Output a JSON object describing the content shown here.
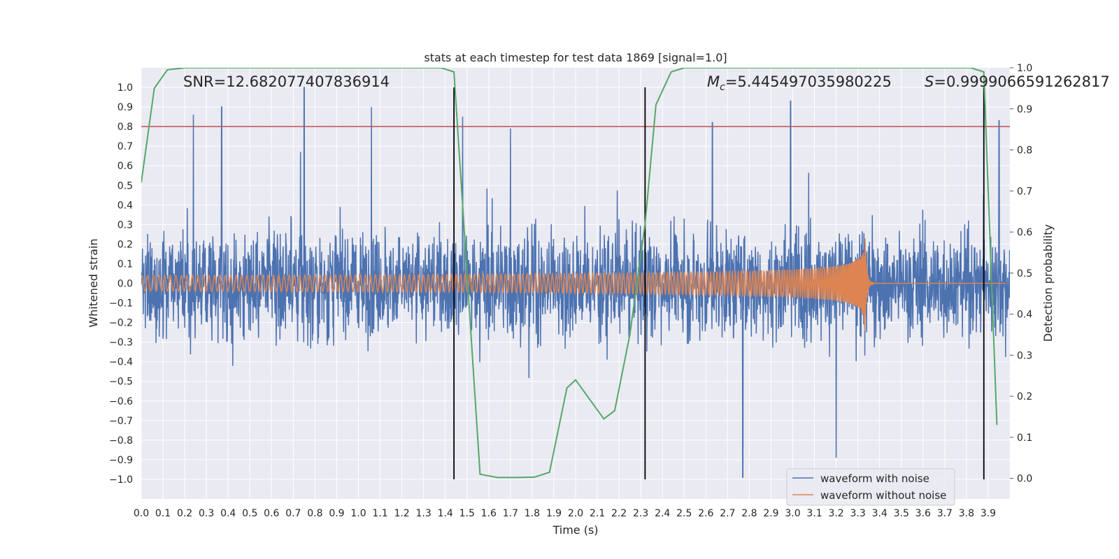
{
  "chart_data": {
    "type": "line",
    "title": "stats at each timestep for test data 1869 [signal=1.0]",
    "xlabel": "Time (s)",
    "ylabel_left": "Whitened strain",
    "ylabel_right": "Detection probability",
    "xlim": [
      0.0,
      4.0
    ],
    "ylim_left": [
      -1.1,
      1.1
    ],
    "ylim_right": [
      -0.05,
      1.0
    ],
    "x_ticks": [
      "0.0",
      "0.1",
      "0.2",
      "0.3",
      "0.4",
      "0.5",
      "0.6",
      "0.7",
      "0.8",
      "0.9",
      "1.0",
      "1.1",
      "1.2",
      "1.3",
      "1.4",
      "1.5",
      "1.6",
      "1.7",
      "1.8",
      "1.9",
      "2.0",
      "2.1",
      "2.2",
      "2.3",
      "2.4",
      "2.5",
      "2.6",
      "2.7",
      "2.8",
      "2.9",
      "3.0",
      "3.1",
      "3.2",
      "3.3",
      "3.4",
      "3.5",
      "3.6",
      "3.7",
      "3.8",
      "3.9"
    ],
    "y_ticks_left": [
      "1.0",
      "0.9",
      "0.8",
      "0.7",
      "0.6",
      "0.5",
      "0.4",
      "0.3",
      "0.2",
      "0.1",
      "0.0",
      "−0.1",
      "−0.2",
      "−0.3",
      "−0.4",
      "−0.5",
      "−0.6",
      "−0.7",
      "−0.8",
      "−0.9",
      "−1.0"
    ],
    "y_ticks_right": [
      "1.0",
      "0.9",
      "0.8",
      "0.7",
      "0.6",
      "0.5",
      "0.4",
      "0.3",
      "0.2",
      "0.1",
      "0.0"
    ],
    "annotations": {
      "snr": "SNR=12.682077407836914",
      "mc_symbol": "M",
      "mc_sub": "c",
      "mc_value": "=5.445497035980225",
      "s_symbol": "S",
      "s_value": "=0.9999066591262817"
    },
    "legend": {
      "placement": "lower-right",
      "entries": [
        "waveform with noise",
        "waveform without noise"
      ]
    },
    "threshold_line": {
      "y": 0.8,
      "color": "#c44e52"
    },
    "vertical_lines_x": [
      1.44,
      2.32,
      3.88
    ],
    "colors": {
      "noise": "#4c72b0",
      "clean": "#dd8452",
      "prob": "#55a868",
      "background": "#eaeaf2",
      "grid": "#ffffff",
      "vline": "#000000"
    },
    "series": [
      {
        "name": "waveform with noise",
        "description": "noisy whitened strain, roughly within ±0.9 with occasional spikes reaching 1.0 and −0.99",
        "sample_rate_hz": 2048,
        "peak_values": [
          [
            0.24,
            0.86
          ],
          [
            0.37,
            0.9
          ],
          [
            0.75,
            1.0
          ],
          [
            1.06,
            0.9
          ],
          [
            1.48,
            0.85
          ],
          [
            1.7,
            0.79
          ],
          [
            2.63,
            0.82
          ],
          [
            2.77,
            -0.99
          ],
          [
            2.99,
            0.93
          ],
          [
            3.2,
            -0.89
          ],
          [
            3.95,
            0.83
          ]
        ]
      },
      {
        "name": "waveform without noise",
        "description": "chirp signal, amplitude grows from ~0.04 to ~0.35 at merger",
        "merger_time": 3.33,
        "amplitude_start": 0.04,
        "amplitude_peak": 0.35
      },
      {
        "name": "detection probability",
        "x": [
          0.0,
          0.06,
          0.12,
          0.2,
          0.4,
          0.8,
          1.2,
          1.38,
          1.44,
          1.56,
          1.64,
          1.72,
          1.81,
          1.88,
          1.96,
          2.0,
          2.13,
          2.18,
          2.25,
          2.32,
          2.37,
          2.44,
          2.5,
          2.8,
          3.2,
          3.6,
          3.82,
          3.88,
          3.94
        ],
        "values": [
          0.72,
          0.95,
          0.995,
          1.0,
          1.0,
          1.0,
          1.0,
          1.0,
          0.99,
          0.01,
          0.002,
          0.002,
          0.003,
          0.015,
          0.22,
          0.24,
          0.145,
          0.165,
          0.35,
          0.62,
          0.91,
          0.99,
          1.0,
          1.0,
          1.0,
          1.0,
          1.0,
          0.99,
          0.13
        ]
      }
    ]
  }
}
